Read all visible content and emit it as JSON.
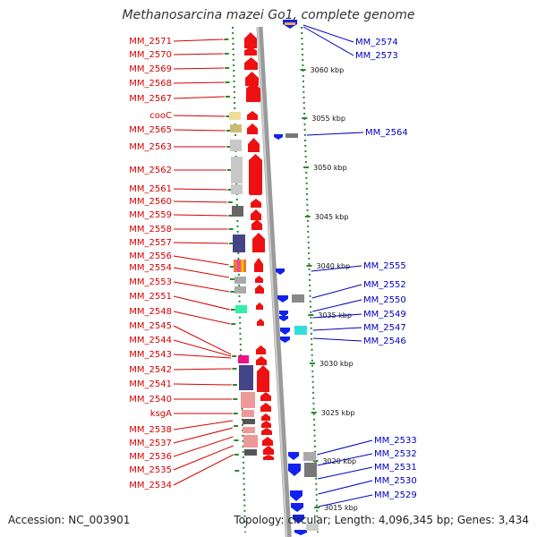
{
  "title": "Methanosarcina mazei Go1, complete genome",
  "footer": {
    "accession": "Accession: NC_003901",
    "topology": "Topology: circular; Length: 4,096,345 bp; Genes: 3,434"
  },
  "ticks": [
    "3060 kbp",
    "3055 kbp",
    "3050 kbp",
    "3045 kbp",
    "3040 kbp",
    "3035 kbp",
    "3030 kbp",
    "3025 kbp",
    "3020 kbp",
    "3015 kbp"
  ],
  "left_labels": [
    "MM_2571",
    "MM_2570",
    "MM_2569",
    "MM_2568",
    "MM_2567",
    "cooC",
    "MM_2565",
    "MM_2563",
    "MM_2562",
    "MM_2561",
    "MM_2560",
    "MM_2559",
    "MM_2558",
    "MM_2557",
    "MM_2556",
    "MM_2554",
    "MM_2553",
    "MM_2551",
    "MM_2548",
    "MM_2545",
    "MM_2544",
    "MM_2543",
    "MM_2542",
    "MM_2541",
    "MM_2540",
    "ksgA",
    "MM_2538",
    "MM_2537",
    "MM_2536",
    "MM_2535",
    "MM_2534"
  ],
  "right_labels": [
    "MM_2574",
    "MM_2573",
    "MM_2564",
    "MM_2555",
    "MM_2552",
    "MM_2550",
    "MM_2549",
    "MM_2547",
    "MM_2546",
    "MM_2533",
    "MM_2532",
    "MM_2531",
    "MM_2530",
    "MM_2529"
  ],
  "colors": {
    "forward": "#ee1111",
    "reverse": "#1122ee",
    "left_label": "#d40000",
    "right_label": "#0000c0",
    "backbone": "#888888",
    "track_dots": "#2a8a2a"
  }
}
